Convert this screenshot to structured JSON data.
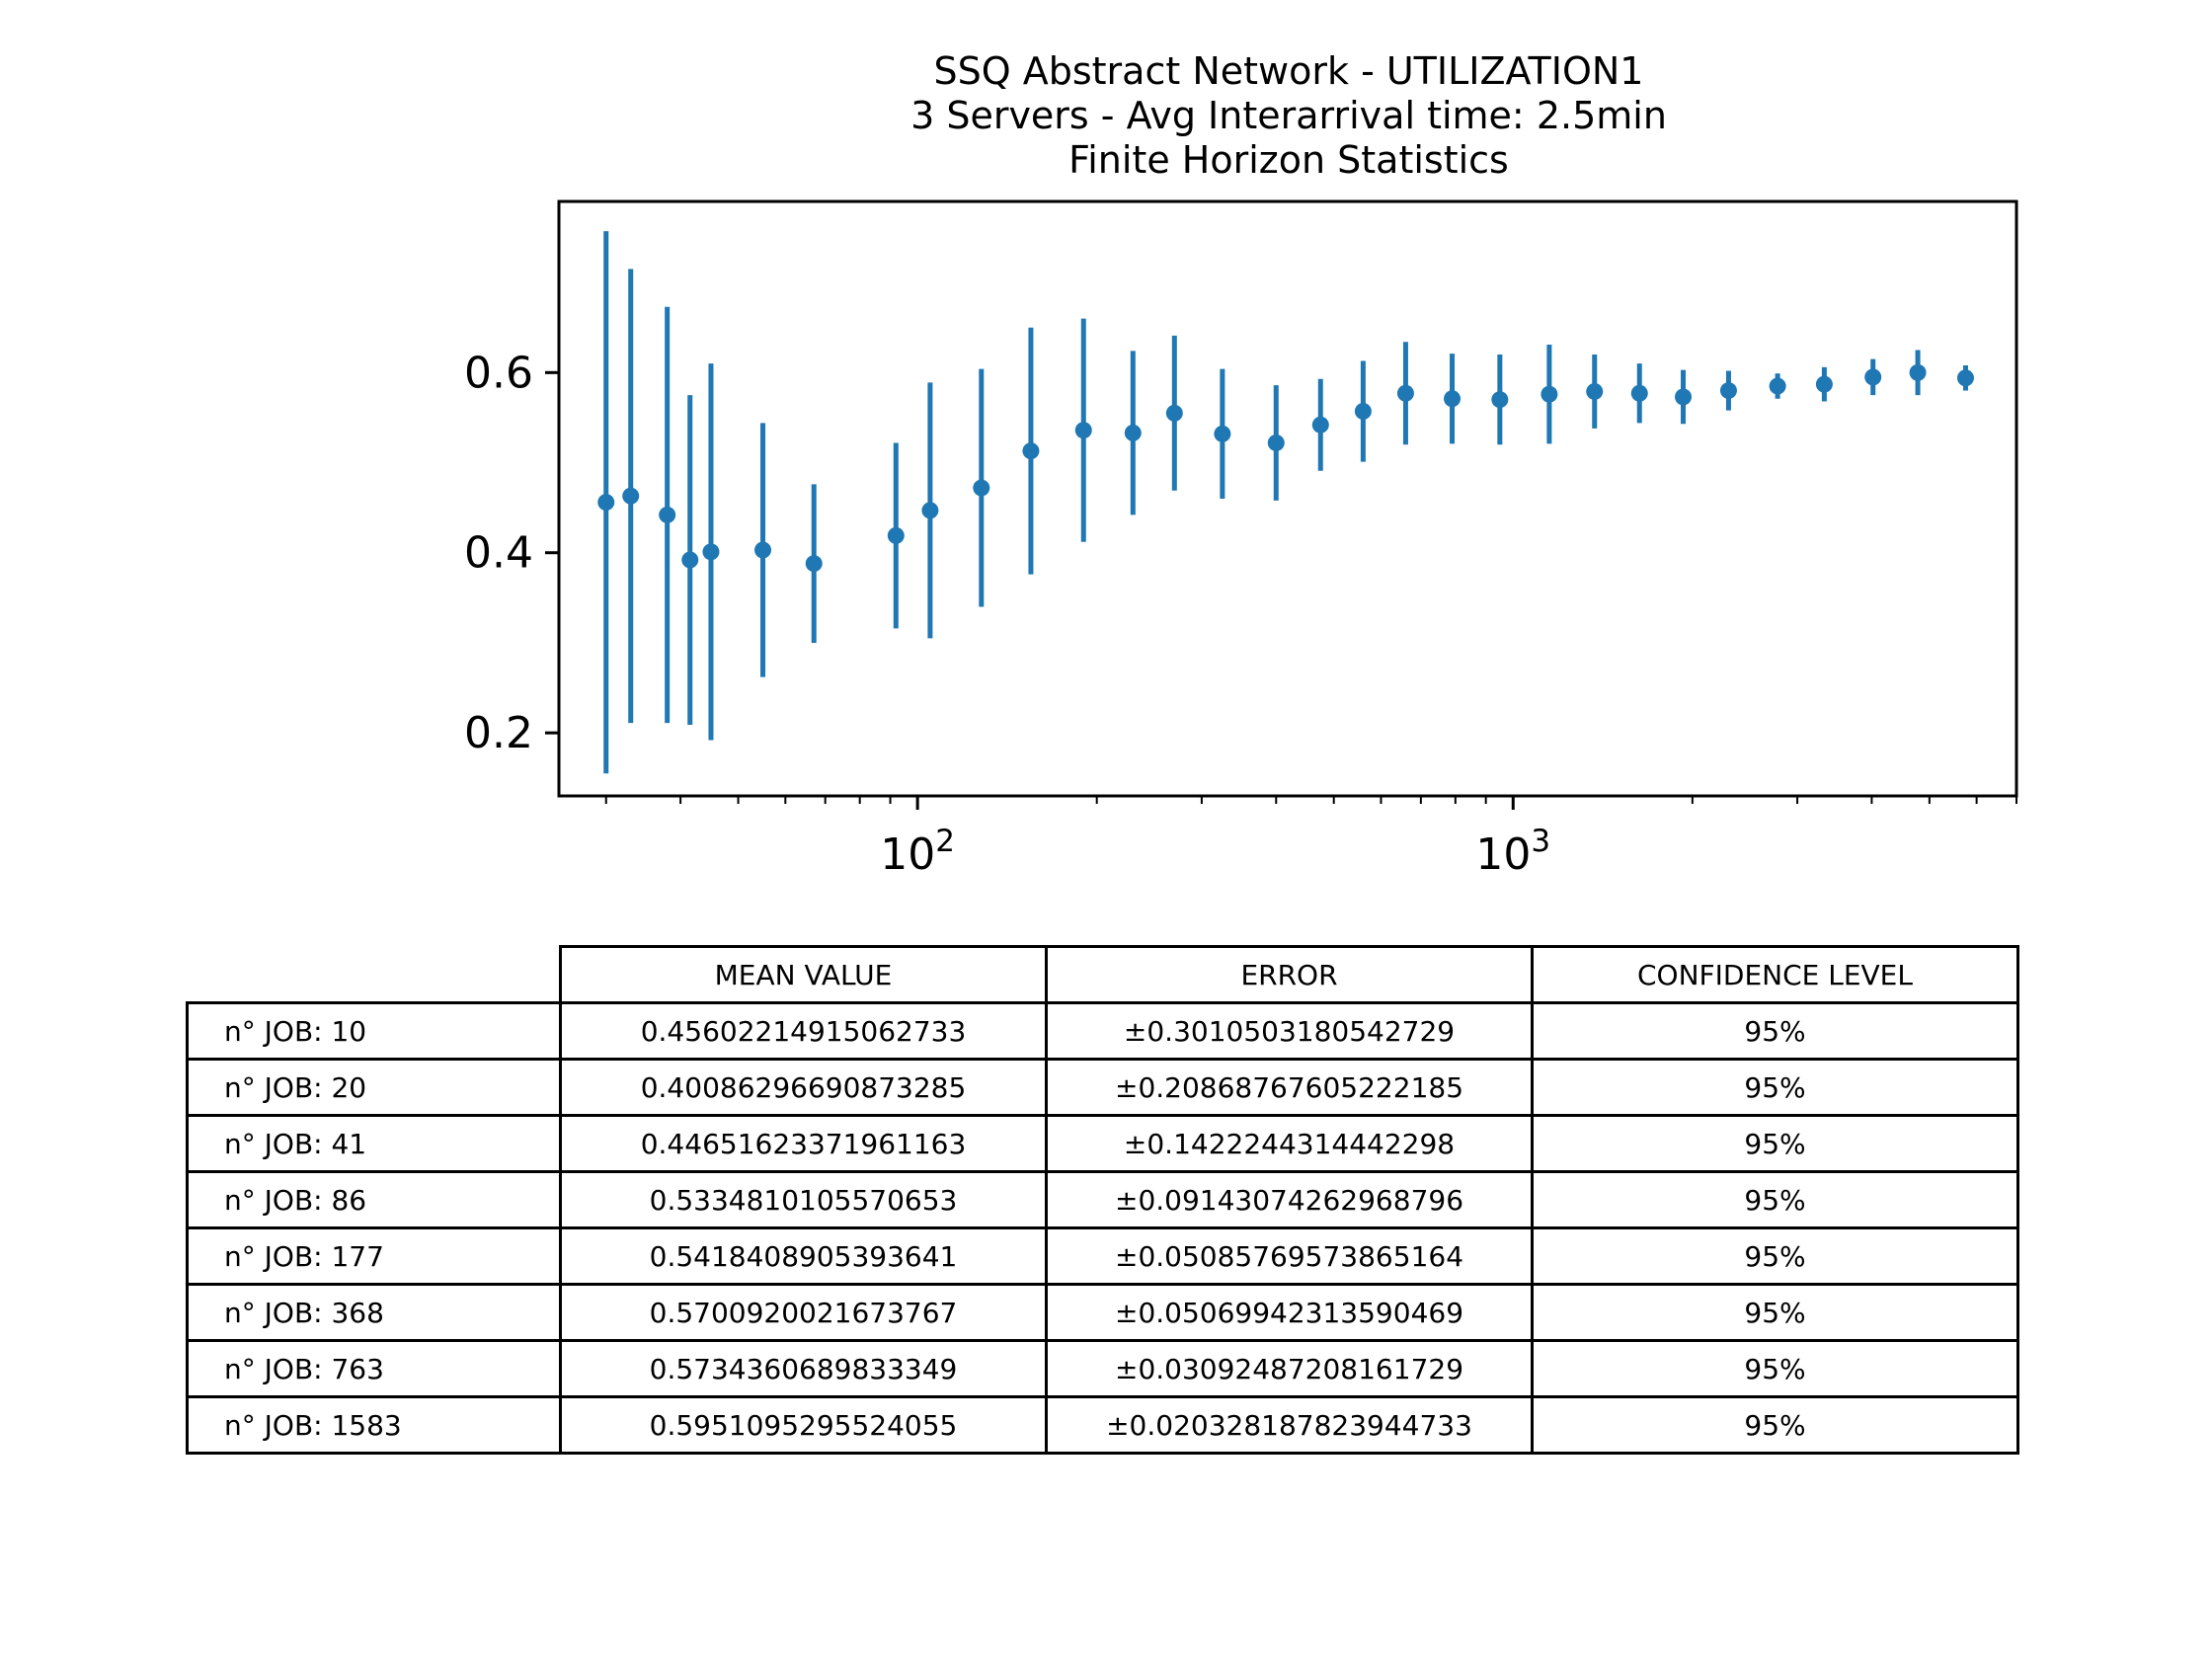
{
  "chart_data": {
    "type": "scatter",
    "title_lines": [
      "SSQ Abstract Network - UTILIZATION1",
      "3 Servers -  Avg Interarrival time: 2.5min",
      "Finite Horizon Statistics"
    ],
    "xscale": "log",
    "xlim": [
      25,
      7000
    ],
    "ylim": [
      0.13,
      0.79
    ],
    "xticks": [
      {
        "value": 100,
        "base": "10",
        "exp": "2"
      },
      {
        "value": 1000,
        "base": "10",
        "exp": "3"
      }
    ],
    "yticks": [
      {
        "value": 0.2,
        "label": "0.2"
      },
      {
        "value": 0.4,
        "label": "0.4"
      },
      {
        "value": 0.6,
        "label": "0.6"
      }
    ],
    "grid": false,
    "marker_color": "#1f77b4",
    "points": [
      {
        "x": 30,
        "y": 0.456,
        "err": 0.301
      },
      {
        "x": 33,
        "y": 0.463,
        "err": 0.252
      },
      {
        "x": 38,
        "y": 0.442,
        "err": 0.231
      },
      {
        "x": 41.5,
        "y": 0.392,
        "err": 0.183
      },
      {
        "x": 45,
        "y": 0.401,
        "err": 0.209
      },
      {
        "x": 55,
        "y": 0.403,
        "err": 0.141
      },
      {
        "x": 67,
        "y": 0.388,
        "err": 0.088
      },
      {
        "x": 92,
        "y": 0.419,
        "err": 0.103
      },
      {
        "x": 105,
        "y": 0.447,
        "err": 0.142
      },
      {
        "x": 128,
        "y": 0.472,
        "err": 0.132
      },
      {
        "x": 155,
        "y": 0.513,
        "err": 0.137
      },
      {
        "x": 190,
        "y": 0.536,
        "err": 0.124
      },
      {
        "x": 230,
        "y": 0.533,
        "err": 0.091
      },
      {
        "x": 270,
        "y": 0.555,
        "err": 0.086
      },
      {
        "x": 325,
        "y": 0.532,
        "err": 0.072
      },
      {
        "x": 400,
        "y": 0.522,
        "err": 0.064
      },
      {
        "x": 475,
        "y": 0.542,
        "err": 0.051
      },
      {
        "x": 560,
        "y": 0.557,
        "err": 0.056
      },
      {
        "x": 660,
        "y": 0.577,
        "err": 0.057
      },
      {
        "x": 790,
        "y": 0.571,
        "err": 0.05
      },
      {
        "x": 950,
        "y": 0.57,
        "err": 0.05
      },
      {
        "x": 1150,
        "y": 0.576,
        "err": 0.055
      },
      {
        "x": 1370,
        "y": 0.579,
        "err": 0.041
      },
      {
        "x": 1630,
        "y": 0.577,
        "err": 0.033
      },
      {
        "x": 1930,
        "y": 0.573,
        "err": 0.03
      },
      {
        "x": 2300,
        "y": 0.58,
        "err": 0.022
      },
      {
        "x": 2780,
        "y": 0.585,
        "err": 0.014
      },
      {
        "x": 3330,
        "y": 0.587,
        "err": 0.019
      },
      {
        "x": 4020,
        "y": 0.595,
        "err": 0.02
      },
      {
        "x": 4780,
        "y": 0.6,
        "err": 0.025
      },
      {
        "x": 5750,
        "y": 0.594,
        "err": 0.014
      }
    ]
  },
  "table": {
    "headers": [
      "MEAN VALUE",
      "ERROR",
      "CONFIDENCE LEVEL"
    ],
    "rows": [
      {
        "label": "n° JOB: 10",
        "mean": "0.45602214915062733",
        "error": "±0.3010503180542729",
        "confidence": "95%"
      },
      {
        "label": "n° JOB: 20",
        "mean": "0.40086296690873285",
        "error": "±0.20868767605222185",
        "confidence": "95%"
      },
      {
        "label": "n° JOB: 41",
        "mean": "0.44651623371961163",
        "error": "±0.1422244314442298",
        "confidence": "95%"
      },
      {
        "label": "n° JOB: 86",
        "mean": "0.5334810105570653",
        "error": "±0.09143074262968796",
        "confidence": "95%"
      },
      {
        "label": "n° JOB: 177",
        "mean": "0.5418408905393641",
        "error": "±0.05085769573865164",
        "confidence": "95%"
      },
      {
        "label": "n° JOB: 368",
        "mean": "0.5700920021673767",
        "error": "±0.05069942313590469",
        "confidence": "95%"
      },
      {
        "label": "n° JOB: 763",
        "mean": "0.5734360689833349",
        "error": "±0.03092487208161729",
        "confidence": "95%"
      },
      {
        "label": "n° JOB: 1583",
        "mean": "0.5951095295524055",
        "error": "±0.020328187823944733",
        "confidence": "95%"
      }
    ]
  }
}
